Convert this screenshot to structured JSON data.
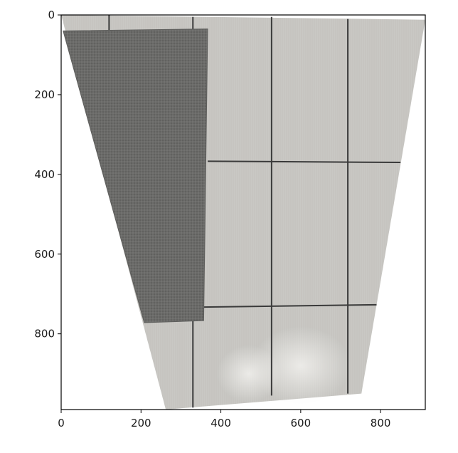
{
  "plot": {
    "xlim": [
      0,
      912
    ],
    "ylim": [
      990,
      0
    ],
    "x_ticks": [
      {
        "value": 0,
        "label": "0"
      },
      {
        "value": 200,
        "label": "200"
      },
      {
        "value": 400,
        "label": "400"
      },
      {
        "value": 600,
        "label": "600"
      },
      {
        "value": 800,
        "label": "800"
      }
    ],
    "y_ticks": [
      {
        "value": 0,
        "label": "0"
      },
      {
        "value": 200,
        "label": "200"
      },
      {
        "value": 400,
        "label": "400"
      },
      {
        "value": 600,
        "label": "600"
      },
      {
        "value": 800,
        "label": "800"
      }
    ]
  },
  "image": {
    "outline": [
      [
        0,
        0
      ],
      [
        912,
        12
      ],
      [
        752,
        950
      ],
      [
        262,
        990
      ]
    ],
    "floor_color": "#c9c8c4",
    "floor_light": "#dcdbd7",
    "grout_color": "#3a3a3a",
    "mat_color": "#6b6b69",
    "mat_outline": [
      [
        5,
        40
      ],
      [
        367,
        35
      ],
      [
        357,
        767
      ],
      [
        208,
        772
      ]
    ],
    "grout_vertical": [
      [
        [
          120,
          0
        ],
        [
          120,
          40
        ]
      ],
      [
        [
          330,
          5
        ],
        [
          330,
          985
        ]
      ],
      [
        [
          527,
          5
        ],
        [
          527,
          955
        ]
      ],
      [
        [
          718,
          10
        ],
        [
          718,
          950
        ]
      ]
    ],
    "grout_horizontal": [
      [
        [
          367,
          367
        ],
        [
          850,
          370
        ]
      ],
      [
        [
          357,
          733
        ],
        [
          790,
          727
        ]
      ]
    ]
  }
}
